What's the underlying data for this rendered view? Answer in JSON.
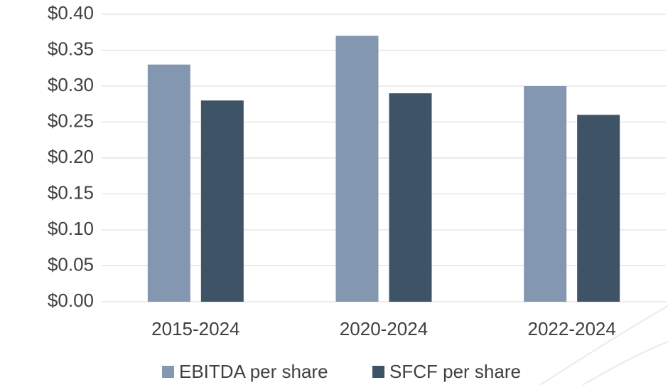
{
  "chart_data": {
    "type": "bar",
    "categories": [
      "2015-2024",
      "2020-2024",
      "2022-2024"
    ],
    "series": [
      {
        "name": "EBITDA per share",
        "color": "#8497b0",
        "values": [
          0.33,
          0.37,
          0.3
        ]
      },
      {
        "name": "SFCF per share",
        "color": "#3e5366",
        "values": [
          0.28,
          0.29,
          0.26
        ]
      }
    ],
    "ylim": [
      0,
      0.4
    ],
    "yticks": [
      {
        "value": 0,
        "label": "$0.00"
      },
      {
        "value": 0.05,
        "label": "$0.05"
      },
      {
        "value": 0.1,
        "label": "$0.10"
      },
      {
        "value": 0.15,
        "label": "$0.15"
      },
      {
        "value": 0.2,
        "label": "$0.20"
      },
      {
        "value": 0.25,
        "label": "$0.25"
      },
      {
        "value": 0.3,
        "label": "$0.30"
      },
      {
        "value": 0.35,
        "label": "$0.35"
      },
      {
        "value": 0.4,
        "label": "$0.40"
      }
    ],
    "grid": true,
    "legend": "bottom"
  }
}
